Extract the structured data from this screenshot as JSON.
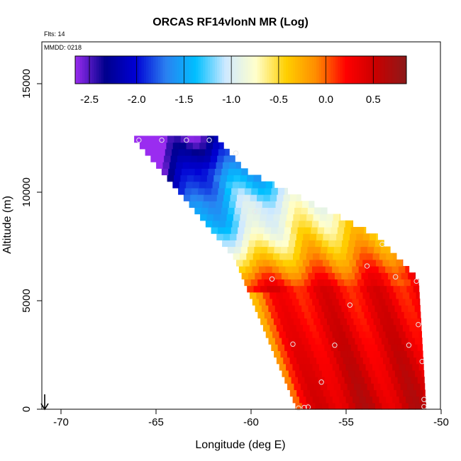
{
  "chart_data": {
    "type": "heatmap",
    "title": "ORCAS RF14vlonN MR (Log)",
    "annotations": {
      "flights": "Flts: 14",
      "date": "MMDD: 0218"
    },
    "xlabel": "Longitude (deg E)",
    "ylabel": "Altitude (m)",
    "xlim": [
      -71,
      -50
    ],
    "ylim": [
      0,
      16600
    ],
    "x_ticks": [
      -70,
      -65,
      -60,
      -55,
      -50
    ],
    "x_tick_labels": [
      "-70",
      "-65",
      "-60",
      "-55",
      "-50"
    ],
    "y_ticks": [
      0,
      5000,
      10000,
      15000
    ],
    "y_tick_labels": [
      "0",
      "5000",
      "10000",
      "15000"
    ],
    "colorbar": {
      "range": [
        -2.65,
        0.85
      ],
      "ticks": [
        -2.5,
        -2.0,
        -1.5,
        -1.0,
        -0.5,
        0.0,
        0.5
      ],
      "tick_labels": [
        "-2.5",
        "-2.0",
        "-1.5",
        "-1.0",
        "-0.5",
        "0.0",
        "0.5"
      ],
      "colors": [
        "#9a2cf0",
        "#00008c",
        "#0000d4",
        "#2a7ff0",
        "#00bfff",
        "#cfe9ff",
        "#ffffcc",
        "#ffd000",
        "#ff8c00",
        "#ff0000",
        "#c80000",
        "#8b1a1a"
      ]
    },
    "observations": [
      {
        "lon": -65.9,
        "alt": 12400
      },
      {
        "lon": -64.7,
        "alt": 12400
      },
      {
        "lon": -63.4,
        "alt": 12400
      },
      {
        "lon": -62.2,
        "alt": 12400
      },
      {
        "lon": -60.8,
        "alt": 11800
      },
      {
        "lon": -59.8,
        "alt": 9100
      },
      {
        "lon": -53.1,
        "alt": 7600
      },
      {
        "lon": -53.9,
        "alt": 6600
      },
      {
        "lon": -52.4,
        "alt": 6100
      },
      {
        "lon": -58.9,
        "alt": 6000
      },
      {
        "lon": -51.3,
        "alt": 5900
      },
      {
        "lon": -54.8,
        "alt": 4800
      },
      {
        "lon": -51.2,
        "alt": 3900
      },
      {
        "lon": -57.8,
        "alt": 3000
      },
      {
        "lon": -55.6,
        "alt": 2950
      },
      {
        "lon": -51.7,
        "alt": 2950
      },
      {
        "lon": -51.0,
        "alt": 2200
      },
      {
        "lon": -56.3,
        "alt": 1250
      },
      {
        "lon": -50.9,
        "alt": 450
      },
      {
        "lon": -50.9,
        "alt": 120
      },
      {
        "lon": -57.0,
        "alt": 100
      },
      {
        "lon": -57.2,
        "alt": 80
      },
      {
        "lon": -57.5,
        "alt": 50
      }
    ],
    "marker": {
      "label": "arrow",
      "lon": -70.8
    }
  }
}
